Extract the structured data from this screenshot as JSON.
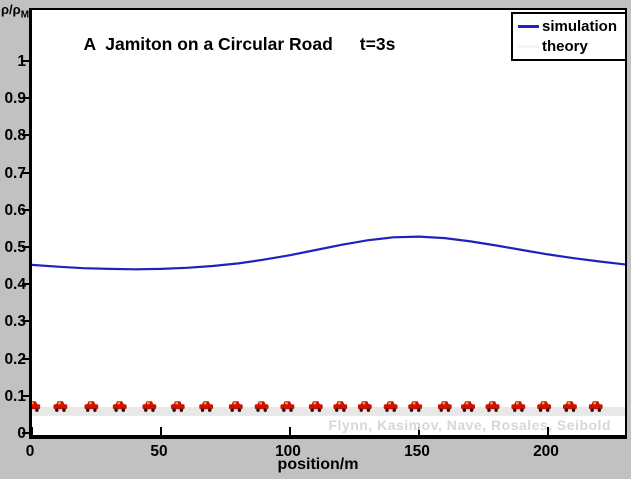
{
  "figure": {
    "title": "A  Jamiton on a Circular Road",
    "time_label": "t=3s",
    "watermark": "Flynn, Kasimov, Nave, Rosales, Seibold",
    "background_color": "#c1c1c1",
    "plot_background": "#ffffff"
  },
  "axes": {
    "ylabel_main": "ρ/ρ",
    "ylabel_sub": "M",
    "xlabel": "position/m"
  },
  "legend": {
    "items": [
      {
        "label": "simulation",
        "color": "#2121bb"
      },
      {
        "label": "theory",
        "color": "#f4f4f4"
      }
    ]
  },
  "chart_data": {
    "type": "line",
    "title": "A Jamiton on a Circular Road   t=3s",
    "xlabel": "position/m",
    "ylabel": "ρ/ρ_M",
    "xlim": [
      0,
      230
    ],
    "ylim": [
      0,
      1.14
    ],
    "grid": false,
    "legend_position": "top-right",
    "x_ticks": {
      "values": [
        0,
        50,
        100,
        150,
        200
      ],
      "labels": [
        "0",
        "50",
        "100",
        "150",
        "200"
      ]
    },
    "y_ticks": {
      "values": [
        0,
        0.1,
        0.2,
        0.3,
        0.4,
        0.5,
        0.6,
        0.7,
        0.8,
        0.9,
        1
      ],
      "labels": [
        "0",
        "0.1",
        "0.2",
        "0.3",
        "0.4",
        "0.5",
        "0.6",
        "0.7",
        "0.8",
        "0.9",
        "1"
      ]
    },
    "series": [
      {
        "name": "simulation",
        "color": "#2121bb",
        "x": [
          0,
          10,
          20,
          30,
          40,
          50,
          60,
          70,
          80,
          90,
          100,
          110,
          120,
          130,
          140,
          150,
          160,
          170,
          180,
          190,
          200,
          210,
          220,
          230
        ],
        "y": [
          0.452,
          0.447,
          0.443,
          0.441,
          0.44,
          0.441,
          0.444,
          0.449,
          0.456,
          0.466,
          0.478,
          0.492,
          0.506,
          0.518,
          0.526,
          0.528,
          0.524,
          0.515,
          0.504,
          0.492,
          0.48,
          0.47,
          0.461,
          0.453
        ]
      }
    ],
    "road": {
      "y_level": 0.058,
      "thickness_px": 9,
      "color": "#e8e8e8"
    },
    "cars": {
      "color": "#cc1100",
      "count": 22,
      "positions_m": [
        0.5,
        11,
        23,
        34,
        45.5,
        56.5,
        67.5,
        79,
        89,
        99,
        110,
        119.5,
        129,
        139,
        148.5,
        160,
        169,
        178.5,
        188.5,
        198.5,
        208.5,
        218.5
      ]
    }
  }
}
